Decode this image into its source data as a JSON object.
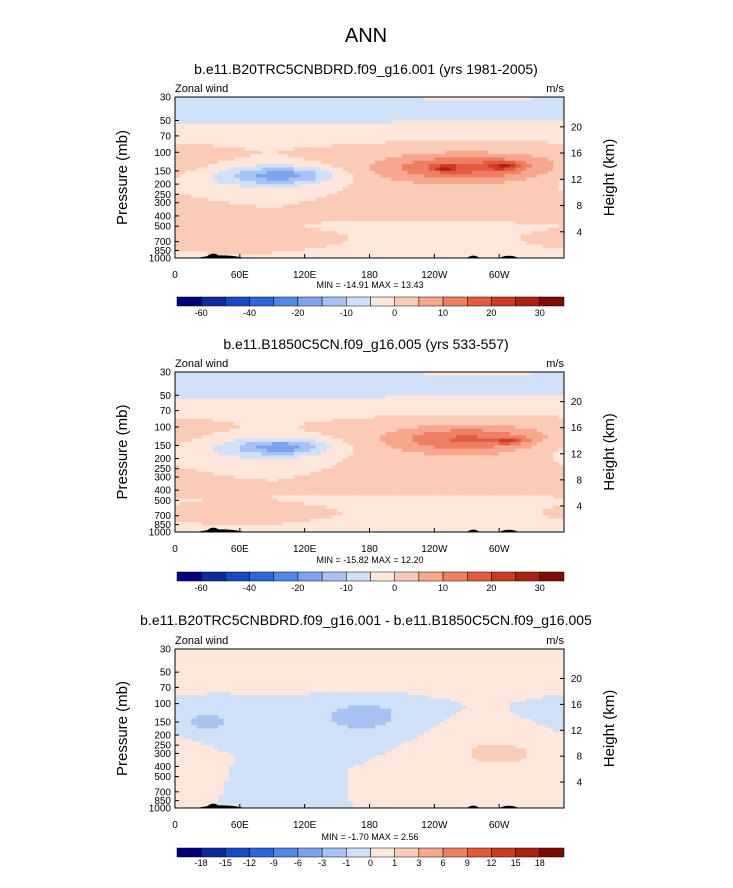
{
  "figure_title": "ANN",
  "chart_data": [
    {
      "type": "heatmap",
      "title": "b.e11.B20TRC5CNBDRD.f09_g16.001 (yrs 1981-2005)",
      "left_label": "Zonal wind",
      "right_label": "m/s",
      "ylabel": "Pressure (mb)",
      "y2label": "Height (km)",
      "x_ticks": [
        "0",
        "60E",
        "120E",
        "180",
        "120W",
        "60W"
      ],
      "y_ticks": [
        "30",
        "50",
        "70",
        "100",
        "150",
        "200",
        "250",
        "300",
        "400",
        "500",
        "700",
        "850",
        "1000"
      ],
      "y2_ticks": [
        "20",
        "16",
        "12",
        "8",
        "4"
      ],
      "minmax": "MIN = -14.91  MAX = 13.43",
      "colorbar_ticks": [
        "-60",
        "-40",
        "-20",
        "-10",
        "0",
        "10",
        "20",
        "30"
      ],
      "blobs": [
        {
          "lon": 60,
          "p": 175,
          "rx": 90,
          "rp": 60,
          "v": -6
        },
        {
          "lon": 100,
          "p": 165,
          "rx": 45,
          "rp": 35,
          "v": -14
        },
        {
          "lon": 100,
          "p": 40,
          "rx": 500,
          "rp": 25,
          "v": -7
        },
        {
          "lon": 270,
          "p": 150,
          "rx": 120,
          "rp": 100,
          "v": 5
        },
        {
          "lon": 270,
          "p": 140,
          "rx": 75,
          "rp": 45,
          "v": 12
        },
        {
          "lon": 305,
          "p": 135,
          "rx": 15,
          "rp": 12,
          "v": 13.4
        },
        {
          "lon": 250,
          "p": 140,
          "rx": 10,
          "rp": 10,
          "v": 13.4
        },
        {
          "lon": 60,
          "p": 650,
          "rx": 70,
          "rp": 80,
          "v": 4
        },
        {
          "lon": 240,
          "p": 650,
          "rx": 70,
          "rp": 140,
          "v": -2
        }
      ]
    },
    {
      "type": "heatmap",
      "title": "b.e11.B1850C5CN.f09_g16.005 (yrs 533-557)",
      "left_label": "Zonal wind",
      "right_label": "m/s",
      "ylabel": "Pressure (mb)",
      "y2label": "Height (km)",
      "x_ticks": [
        "0",
        "60E",
        "120E",
        "180",
        "120W",
        "60W"
      ],
      "y_ticks": [
        "30",
        "50",
        "70",
        "100",
        "150",
        "200",
        "250",
        "300",
        "400",
        "500",
        "700",
        "850",
        "1000"
      ],
      "y2_ticks": [
        "20",
        "16",
        "12",
        "8",
        "4"
      ],
      "minmax": "MIN = -15.82  MAX =  12.20",
      "colorbar_ticks": [
        "-60",
        "-40",
        "-20",
        "-10",
        "0",
        "10",
        "20",
        "30"
      ],
      "blobs": [
        {
          "lon": 60,
          "p": 165,
          "rx": 85,
          "rp": 55,
          "v": -6
        },
        {
          "lon": 100,
          "p": 155,
          "rx": 40,
          "rp": 30,
          "v": -14
        },
        {
          "lon": 100,
          "p": 40,
          "rx": 500,
          "rp": 25,
          "v": -7
        },
        {
          "lon": 270,
          "p": 140,
          "rx": 110,
          "rp": 90,
          "v": 5
        },
        {
          "lon": 270,
          "p": 130,
          "rx": 65,
          "rp": 40,
          "v": 11
        },
        {
          "lon": 310,
          "p": 135,
          "rx": 14,
          "rp": 10,
          "v": 12.2
        },
        {
          "lon": 70,
          "p": 650,
          "rx": 60,
          "rp": 70,
          "v": 3
        },
        {
          "lon": 240,
          "p": 650,
          "rx": 70,
          "rp": 140,
          "v": -2
        }
      ]
    },
    {
      "type": "heatmap",
      "title": "b.e11.B20TRC5CNBDRD.f09_g16.001 - b.e11.B1850C5CN.f09_g16.005",
      "left_label": "Zonal wind",
      "right_label": "m/s",
      "ylabel": "Pressure (mb)",
      "y2label": "Height (km)",
      "x_ticks": [
        "0",
        "60E",
        "120E",
        "180",
        "120W",
        "60W"
      ],
      "y_ticks": [
        "30",
        "50",
        "70",
        "100",
        "150",
        "200",
        "250",
        "300",
        "400",
        "500",
        "700",
        "850",
        "1000"
      ],
      "y2_ticks": [
        "20",
        "16",
        "12",
        "8",
        "4"
      ],
      "minmax": "MIN = -1.70  MAX =  2.56",
      "colorbar_ticks": [
        "-18",
        "-15",
        "-12",
        "-9",
        "-6",
        "-3",
        "-1",
        "0",
        "1",
        "3",
        "6",
        "9",
        "12",
        "15",
        "18"
      ],
      "blobs": [
        {
          "lon": 180,
          "p": 40,
          "rx": 500,
          "rp": 25,
          "v": 0.5
        },
        {
          "lon": 40,
          "p": 150,
          "rx": 60,
          "rp": 80,
          "v": -0.5
        },
        {
          "lon": 170,
          "p": 150,
          "rx": 60,
          "rp": 90,
          "v": -0.5
        },
        {
          "lon": 175,
          "p": 130,
          "rx": 30,
          "rp": 40,
          "v": -1.5
        },
        {
          "lon": 30,
          "p": 150,
          "rx": 15,
          "rp": 25,
          "v": -1.5
        },
        {
          "lon": 300,
          "p": 300,
          "rx": 60,
          "rp": 200,
          "v": 1.2
        },
        {
          "lon": 95,
          "p": 480,
          "rx": 25,
          "rp": 300,
          "v": -0.5
        }
      ]
    }
  ]
}
